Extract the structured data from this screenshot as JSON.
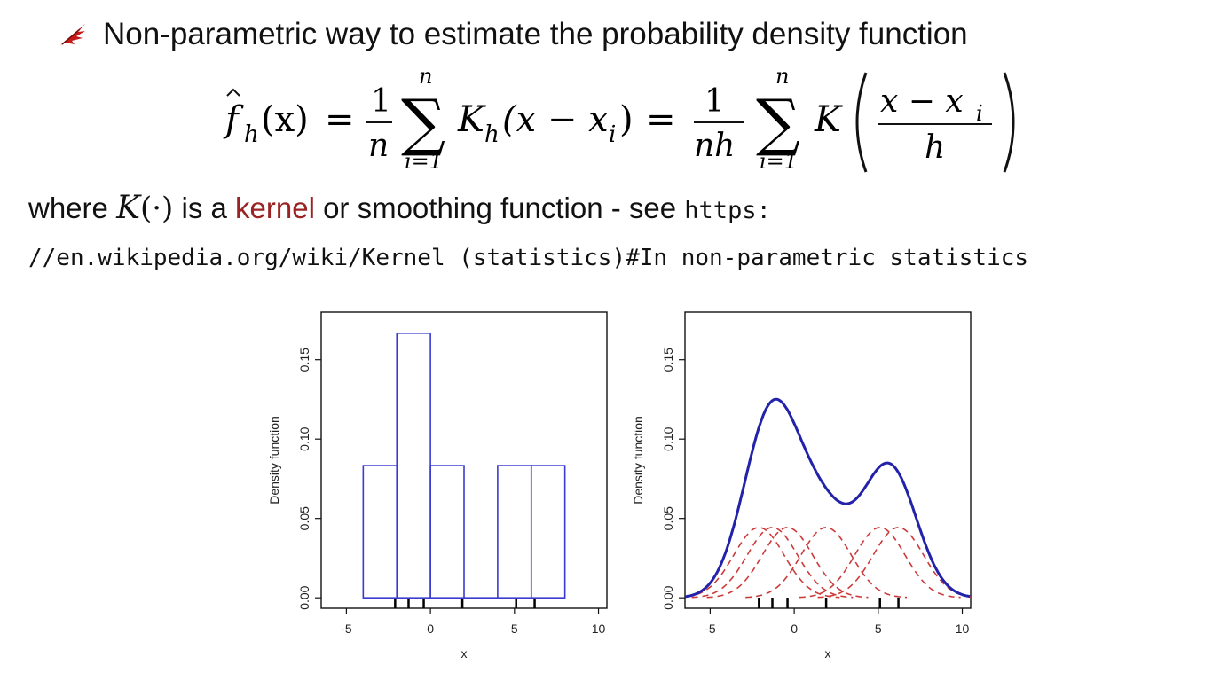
{
  "slide": {
    "bullet_text": "Non-parametric way to estimate the probability density function",
    "bullet_icon": "red-feather-bullet-icon",
    "formula": {
      "lhs_f": "f",
      "lhs_sub": "h",
      "lhs_arg": "(x)",
      "equals1": "=",
      "one1": "1",
      "n1": "n",
      "sum_top1": "n",
      "sum_bottom1": "i=1",
      "K1": "K",
      "K1_sub": "h",
      "K1_arg": "(x − x",
      "K1_arg_sub": "i",
      "K1_arg_close": ")",
      "equals2": "=",
      "one2": "1",
      "nh": "nh",
      "sum_top2": "n",
      "sum_bottom2": "i=1",
      "K2": "K",
      "frac_num": "x − x",
      "frac_num_sub": "i",
      "frac_den": "h"
    },
    "where_parts": {
      "p1": "where ",
      "K": "K",
      "paren": "(·)",
      "p2": " is a ",
      "kernel": "kernel",
      "p3": " or smoothing function - see ",
      "https": "https:"
    },
    "url_continuation": "//en.wikipedia.org/wiki/Kernel_(statistics)#In_non-parametric_statistics",
    "colors": {
      "kernel_word": "#9a2323",
      "bullet_icon": "#c41a1a",
      "hist_bars": "#3a3ad0",
      "kde_curve": "#2222aa",
      "kernel_curves": "#cc3b3b",
      "rug": "#000000"
    }
  },
  "chart_data": [
    {
      "type": "bar",
      "subtype": "histogram",
      "xlabel": "x",
      "ylabel": "Density function",
      "xlim": [
        -6.5,
        10.5
      ],
      "ylim": [
        -0.0066,
        0.18
      ],
      "xticks": [
        -5,
        0,
        5,
        10
      ],
      "yticks": [
        0.0,
        0.05,
        0.1,
        0.15
      ],
      "ytick_labels": [
        "0.00",
        "0.05",
        "0.10",
        "0.15"
      ],
      "xtick_labels": [
        "-5",
        "0",
        "5",
        "10"
      ],
      "bins": [
        {
          "x0": -4,
          "x1": -2,
          "density": 0.0833
        },
        {
          "x0": -2,
          "x1": 0,
          "density": 0.1667
        },
        {
          "x0": 0,
          "x1": 2,
          "density": 0.0833
        },
        {
          "x0": 2,
          "x1": 4,
          "density": 0.0
        },
        {
          "x0": 4,
          "x1": 6,
          "density": 0.0833
        },
        {
          "x0": 6,
          "x1": 8,
          "density": 0.0833
        }
      ],
      "rug": [
        -2.1,
        -1.3,
        -0.4,
        1.9,
        5.1,
        6.2
      ]
    },
    {
      "type": "line",
      "subtype": "kernel-density",
      "xlabel": "x",
      "ylabel": "Density function",
      "xlim": [
        -6.5,
        10.5
      ],
      "ylim": [
        -0.0066,
        0.18
      ],
      "xticks": [
        -5,
        0,
        5,
        10
      ],
      "yticks": [
        0.0,
        0.05,
        0.1,
        0.15
      ],
      "ytick_labels": [
        "0.00",
        "0.05",
        "0.10",
        "0.15"
      ],
      "xtick_labels": [
        "-5",
        "0",
        "5",
        "10"
      ],
      "kernel_centers": [
        -2.1,
        -1.3,
        -0.4,
        1.9,
        5.1,
        6.2
      ],
      "kernel_peak": 0.0443,
      "bandwidth": 1.5,
      "kde_peak_values": {
        "x_at_left_peak": -1.2,
        "left_peak": 0.125,
        "x_at_right_peak": 5.6,
        "right_peak": 0.085,
        "x_at_trough": 3.0,
        "trough": 0.06
      },
      "rug": [
        -2.1,
        -1.3,
        -0.4,
        1.9,
        5.1,
        6.2
      ]
    }
  ]
}
